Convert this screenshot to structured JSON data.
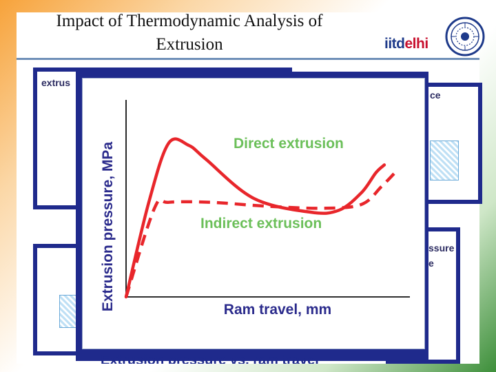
{
  "slide": {
    "title_line1": "Impact of Thermodynamic Analysis of",
    "title_line2": "Extrusion",
    "logo_prefix": "iitd",
    "logo_suffix": "elhi"
  },
  "background_fragments": {
    "top_left": "extrus",
    "top_right": "ce",
    "bottom_right_1": "ssure",
    "bottom_right_2": "e"
  },
  "figure": {
    "caption": "Extrusion pressure vs. ram travel"
  },
  "chart_data": {
    "type": "line",
    "xlabel": "Ram travel, mm",
    "ylabel": "Extrusion pressure, MPa",
    "xlim": [
      0,
      10
    ],
    "ylim": [
      0,
      10
    ],
    "ticks": "none",
    "grid": false,
    "annotations": [
      "Direct extrusion",
      "Indirect extrusion"
    ],
    "series": [
      {
        "name": "Direct extrusion",
        "style": "solid",
        "color": "#e8262b",
        "x": [
          0,
          0.8,
          1.5,
          2.2,
          2.8,
          4.5,
          6.5,
          7.5,
          8.3,
          8.8,
          9.1
        ],
        "y": [
          0,
          4.8,
          7.8,
          7.7,
          7.0,
          5.0,
          4.3,
          4.4,
          5.3,
          6.3,
          6.7
        ]
      },
      {
        "name": "Indirect extrusion",
        "style": "dashed",
        "color": "#e8262b",
        "x": [
          0,
          1.0,
          1.5,
          3.0,
          5.0,
          7.0,
          8.3,
          9.0,
          9.6
        ],
        "y": [
          0,
          4.5,
          4.8,
          4.8,
          4.6,
          4.5,
          4.7,
          5.6,
          6.5
        ]
      }
    ],
    "colors": {
      "curve": "#e8262b",
      "label": "#6bbf59",
      "axis_text": "#2b2b8c"
    }
  }
}
